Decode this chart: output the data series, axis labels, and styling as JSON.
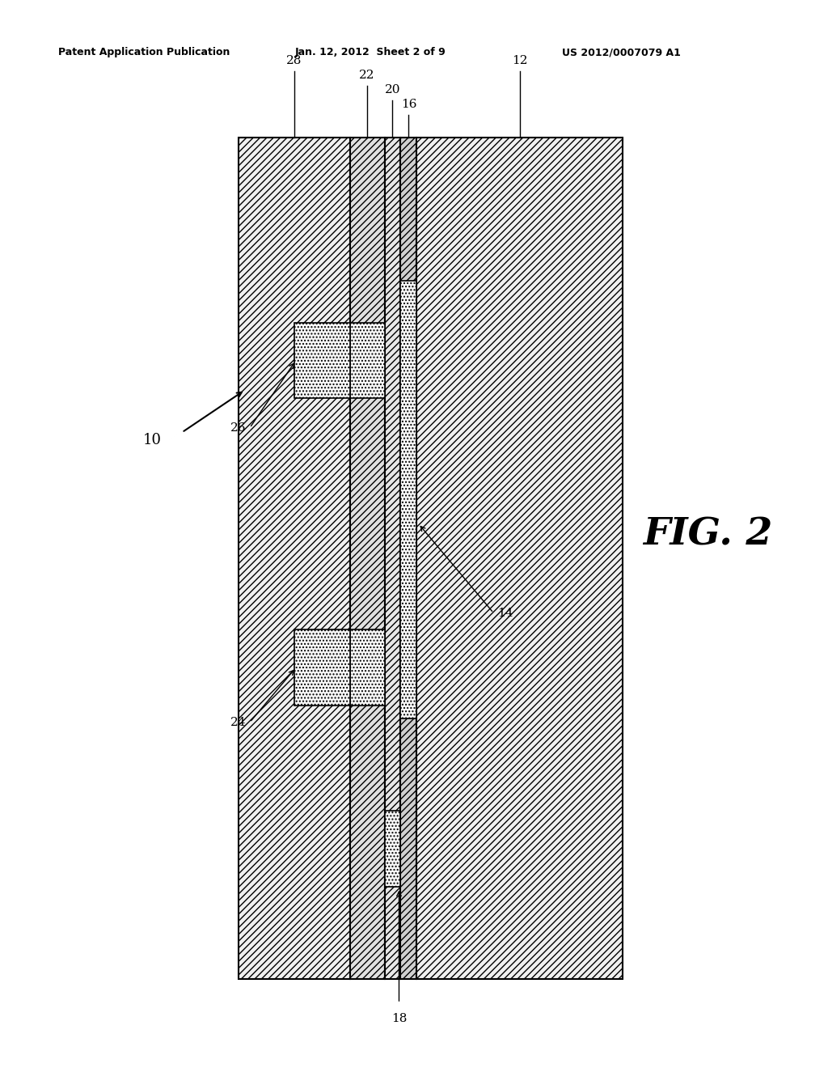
{
  "header_left": "Patent Application Publication",
  "header_mid": "Jan. 12, 2012  Sheet 2 of 9",
  "header_right": "US 2012/0007079 A1",
  "fig_label": "FIG. 2",
  "bg_color": "#ffffff"
}
